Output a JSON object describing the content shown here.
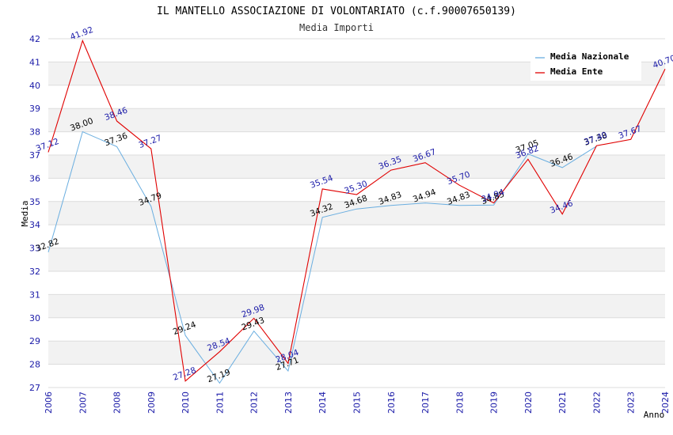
{
  "chart_data": {
    "type": "line",
    "title": "IL MANTELLO ASSOCIAZIONE DI VOLONTARIATO (c.f.90007650139)",
    "subtitle": "Media Importi",
    "xlabel": "Anno",
    "ylabel": "Media",
    "ylim": [
      27,
      42
    ],
    "yticks": [
      27,
      28,
      29,
      30,
      31,
      32,
      33,
      34,
      35,
      36,
      37,
      38,
      39,
      40,
      41,
      42
    ],
    "categories": [
      "2006",
      "2007",
      "2008",
      "2009",
      "2010",
      "2011",
      "2012",
      "2013",
      "2014",
      "2015",
      "2016",
      "2017",
      "2018",
      "2019",
      "2020",
      "2021",
      "2022",
      "2023",
      "2024"
    ],
    "grid": "horizontal-banded",
    "legend_position": "top-right",
    "series": [
      {
        "name": "Media Nazionale",
        "color": "#6aaee0",
        "label_color": "#000000",
        "values": [
          32.82,
          38.0,
          37.36,
          34.79,
          29.24,
          27.19,
          29.43,
          27.71,
          34.32,
          34.68,
          34.83,
          34.94,
          34.83,
          34.85,
          37.05,
          36.46,
          37.38,
          null,
          null
        ],
        "labels": [
          "32.82",
          "38.00",
          "37.36",
          "34.79",
          "29.24",
          "27.19",
          "29.43",
          "27.71",
          "34.32",
          "34.68",
          "34.83",
          "34.94",
          "34.83",
          "34.85",
          "37.05",
          "36.46",
          "37.38",
          "",
          ""
        ]
      },
      {
        "name": "Media Ente",
        "color": "#e00000",
        "label_color": "#1a1aa8",
        "values": [
          37.12,
          41.92,
          38.46,
          37.27,
          27.28,
          28.54,
          29.98,
          28.04,
          35.54,
          35.3,
          36.35,
          36.67,
          35.7,
          34.94,
          36.82,
          34.46,
          37.4,
          37.67,
          40.7
        ],
        "labels": [
          "37.12",
          "41.92",
          "38.46",
          "37.27",
          "27.28",
          "28.54",
          "29.98",
          "28.04",
          "35.54",
          "35.30",
          "36.35",
          "36.67",
          "35.70",
          "34.94",
          "36.82",
          "34.46",
          "37.40",
          "37.67",
          "40.70"
        ]
      }
    ]
  }
}
